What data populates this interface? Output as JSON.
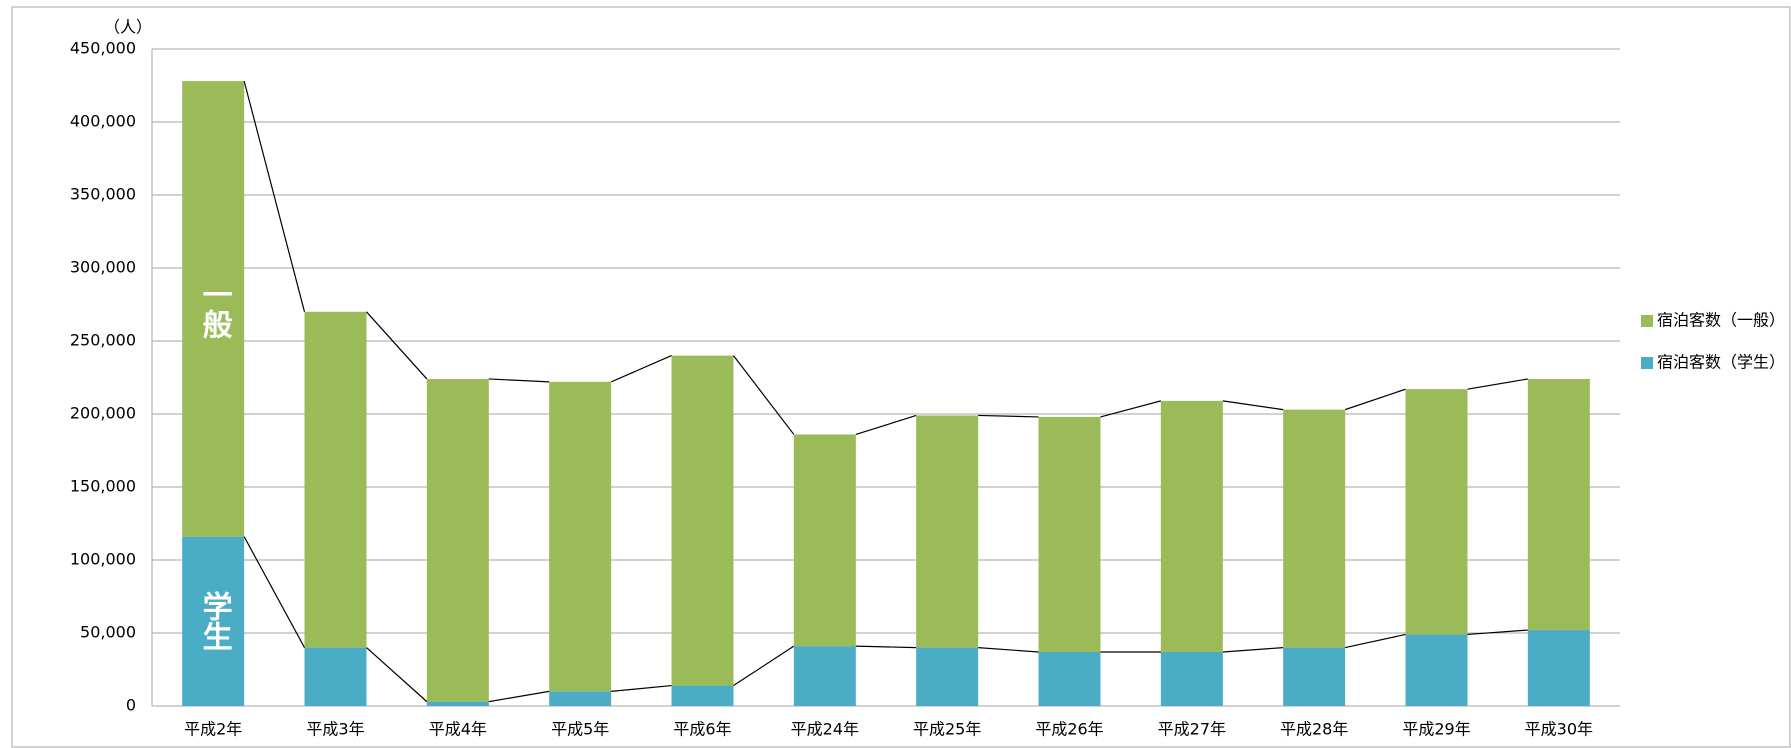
{
  "chart_data": {
    "type": "stacked-bar",
    "y_unit": "（人）",
    "categories": [
      "平成2年",
      "平成3年",
      "平成4年",
      "平成5年",
      "平成6年",
      "平成24年",
      "平成25年",
      "平成26年",
      "平成27年",
      "平成28年",
      "平成29年",
      "平成30年"
    ],
    "series": [
      {
        "name": "宿泊客数（学生）",
        "color": "#4bacc6",
        "values": [
          116000,
          40000,
          3000,
          10000,
          14000,
          41000,
          40000,
          37000,
          37000,
          40000,
          49000,
          52000
        ]
      },
      {
        "name": "宿泊客数（一般）",
        "color": "#9bbb59",
        "values": [
          312000,
          230000,
          221000,
          212000,
          226000,
          145000,
          159000,
          161000,
          172000,
          163000,
          168000,
          172000
        ]
      }
    ],
    "annotations": [
      "学生",
      "一般"
    ],
    "ylim": [
      0,
      450000
    ],
    "yticks": [
      0,
      {
        "value": 50000,
        "label": "50,000"
      },
      {
        "value": 100000,
        "label": "100,000"
      },
      {
        "value": 150000,
        "label": "150,000"
      },
      {
        "value": 200000,
        "label": "200,000"
      },
      {
        "value": 250000,
        "label": "250,000"
      },
      {
        "value": 300000,
        "label": "300,000"
      },
      {
        "value": 350000,
        "label": "350,000"
      },
      {
        "value": 400000,
        "label": "400,000"
      },
      {
        "value": 450000,
        "label": "450,000"
      }
    ],
    "grid": true,
    "legend": "right"
  }
}
